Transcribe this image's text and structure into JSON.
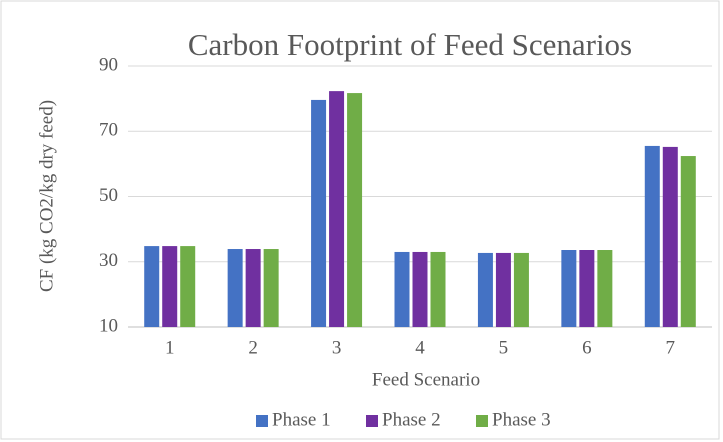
{
  "chart_data": {
    "type": "bar",
    "title": "Carbon Footprint of Feed Scenarios",
    "x_label": "Feed Scenario",
    "y_label": "CF (kg CO2/kg dry feed)",
    "categories": [
      "1",
      "2",
      "3",
      "4",
      "5",
      "6",
      "7"
    ],
    "series": [
      {
        "name": "Phase 1",
        "color": "#4472c4",
        "values": [
          34.8,
          33.9,
          79.6,
          33.0,
          32.7,
          33.6,
          65.5
        ]
      },
      {
        "name": "Phase 2",
        "color": "#7030a0",
        "values": [
          34.8,
          33.9,
          82.3,
          33.0,
          32.7,
          33.6,
          65.2
        ]
      },
      {
        "name": "Phase 3",
        "color": "#70ad47",
        "values": [
          34.8,
          33.9,
          81.7,
          33.0,
          32.7,
          33.6,
          62.4
        ]
      }
    ],
    "ylim": [
      10,
      90
    ],
    "yticks": [
      10,
      30,
      50,
      70,
      90
    ],
    "grid": true,
    "legend": "bottom"
  }
}
